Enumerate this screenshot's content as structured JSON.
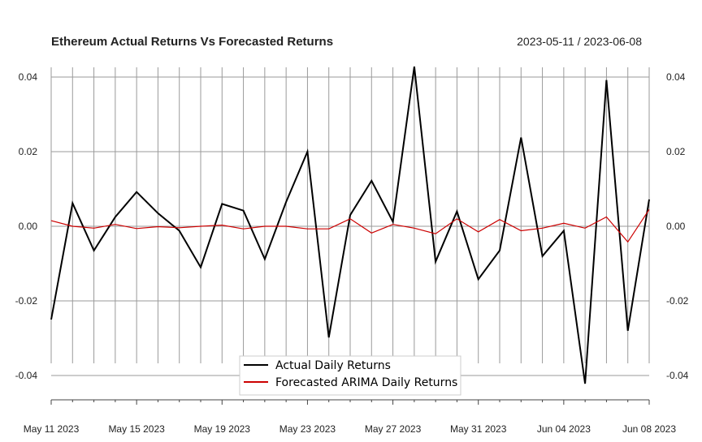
{
  "chart_data": {
    "type": "line",
    "title": "Ethereum Actual Returns Vs Forecasted Returns",
    "date_range": "2023-05-11 / 2023-06-08",
    "x": [
      "2023-05-11",
      "2023-05-12",
      "2023-05-13",
      "2023-05-14",
      "2023-05-15",
      "2023-05-16",
      "2023-05-17",
      "2023-05-18",
      "2023-05-19",
      "2023-05-20",
      "2023-05-21",
      "2023-05-22",
      "2023-05-23",
      "2023-05-24",
      "2023-05-25",
      "2023-05-26",
      "2023-05-27",
      "2023-05-28",
      "2023-05-29",
      "2023-05-30",
      "2023-05-31",
      "2023-06-01",
      "2023-06-02",
      "2023-06-03",
      "2023-06-04",
      "2023-06-05",
      "2023-06-06",
      "2023-06-07",
      "2023-06-08"
    ],
    "x_tick_labels": [
      "May 11 2023",
      "May 15 2023",
      "May 19 2023",
      "May 23 2023",
      "May 27 2023",
      "May 31 2023",
      "Jun 04 2023",
      "Jun 08 2023"
    ],
    "y_tick_labels": [
      "0.04",
      "0.02",
      "0.00",
      "-0.02",
      "-0.04"
    ],
    "ylim": [
      -0.046,
      0.043
    ],
    "grid": true,
    "legend_position": "bottom-center",
    "series": [
      {
        "name": "Actual Daily Returns",
        "color": "#000000",
        "values": [
          -0.025,
          0.0062,
          -0.0065,
          0.0025,
          0.0092,
          0.0035,
          -0.0012,
          -0.011,
          0.006,
          0.0042,
          -0.0088,
          0.0065,
          0.02,
          -0.0298,
          0.003,
          0.0122,
          0.0012,
          0.0428,
          -0.0095,
          0.004,
          -0.0142,
          -0.0065,
          0.0238,
          -0.008,
          -0.0012,
          -0.0422,
          0.0392,
          -0.028,
          0.0072
        ]
      },
      {
        "name": "Forecasted ARIMA Daily Returns",
        "color": "#cc0000",
        "values": [
          0.0015,
          0.0,
          -0.0005,
          0.0005,
          -0.0006,
          -0.0001,
          -0.0004,
          0.0,
          0.0003,
          -0.0007,
          0.0,
          0.0,
          -0.0007,
          -0.0007,
          0.002,
          -0.0018,
          0.0005,
          -0.0005,
          -0.002,
          0.002,
          -0.0015,
          0.0018,
          -0.0012,
          -0.0005,
          0.0008,
          -0.0005,
          0.0025,
          -0.0042,
          0.0045
        ]
      }
    ]
  }
}
